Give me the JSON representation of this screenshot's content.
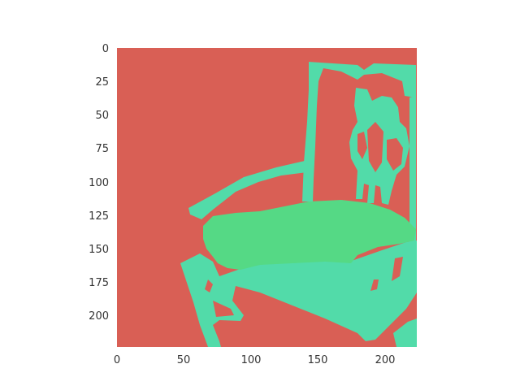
{
  "colors": {
    "background": "#d95f55",
    "chair_frame": "#52dba9",
    "chair_seat": "#55d985",
    "tick_text": "#333333"
  },
  "axes": {
    "xlim": [
      0,
      224
    ],
    "ylim": [
      224,
      0
    ],
    "y_inverted": true,
    "x_ticks": [
      "0",
      "50",
      "100",
      "150",
      "200"
    ],
    "y_ticks": [
      "0",
      "25",
      "50",
      "75",
      "100",
      "125",
      "150",
      "175",
      "200"
    ],
    "grid": false
  },
  "image": {
    "description_kind": "segmentation mask",
    "classes": [
      "background",
      "chair frame",
      "chair seat"
    ]
  }
}
